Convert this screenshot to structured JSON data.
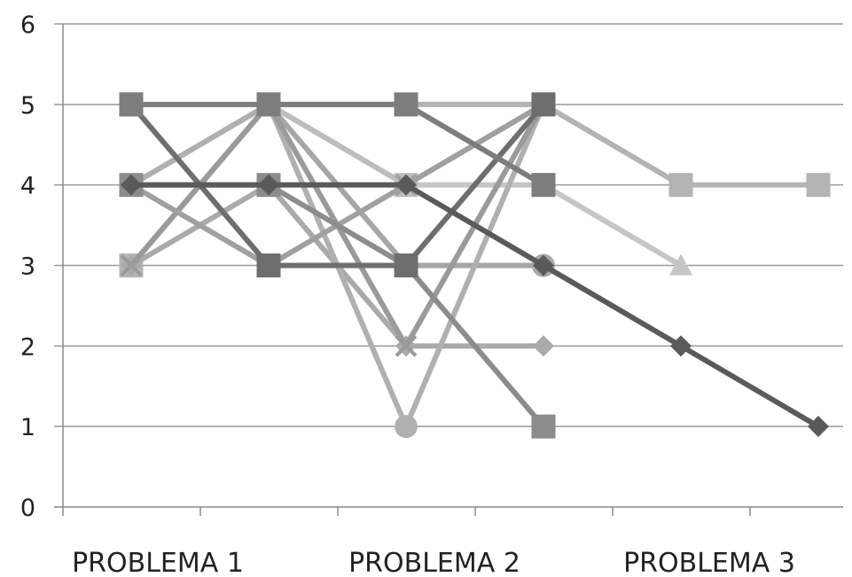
{
  "chart_data": {
    "type": "line",
    "title": "",
    "xlabel": "",
    "ylabel": "",
    "ylim": [
      0,
      6
    ],
    "yticks": [
      "0",
      "1",
      "2",
      "3",
      "4",
      "5",
      "6"
    ],
    "grid": true,
    "legend": "none",
    "category_labels": [
      "PROBLEMA 1",
      "PROBLEMA 2",
      "PROBLEMA 3"
    ],
    "series": [
      {
        "color": "#5a5a5a",
        "marker": "diamond",
        "values": [
          4,
          4,
          4,
          3,
          2,
          1
        ]
      },
      {
        "color": "#7d7d7d",
        "marker": "square",
        "values": [
          5,
          5,
          5,
          4
        ]
      },
      {
        "color": "#6e6e6e",
        "marker": "square",
        "values": [
          5,
          3,
          3,
          5
        ]
      },
      {
        "color": "#8c8c8c",
        "marker": "square",
        "values": [
          4,
          4,
          3,
          1
        ]
      },
      {
        "color": "#a0a0a0",
        "marker": "x",
        "values": [
          4,
          3,
          4,
          5
        ]
      },
      {
        "color": "#9a9a9a",
        "marker": "x",
        "values": [
          3,
          5,
          2,
          5
        ]
      },
      {
        "color": "#b0b0b0",
        "marker": "circle",
        "values": [
          4,
          5,
          1,
          5
        ]
      },
      {
        "color": "#aaaaaa",
        "marker": "diamond",
        "values": [
          3,
          4,
          2,
          2
        ]
      },
      {
        "color": "#b4b4b4",
        "marker": "square",
        "values": [
          3,
          5,
          5,
          5,
          4,
          4
        ]
      },
      {
        "color": "#bdbdbd",
        "marker": "square",
        "values": [
          3,
          5,
          4,
          5
        ]
      },
      {
        "color": "#c6c6c6",
        "marker": "triangle",
        "values": [
          4,
          5,
          4,
          4,
          3
        ]
      },
      {
        "color": "#d5d5d5",
        "marker": "triangle",
        "values": [
          4,
          5,
          4,
          4,
          3
        ]
      },
      {
        "color": "#a6a6a6",
        "marker": "circle",
        "values": [
          4,
          5,
          3,
          3
        ]
      }
    ]
  }
}
